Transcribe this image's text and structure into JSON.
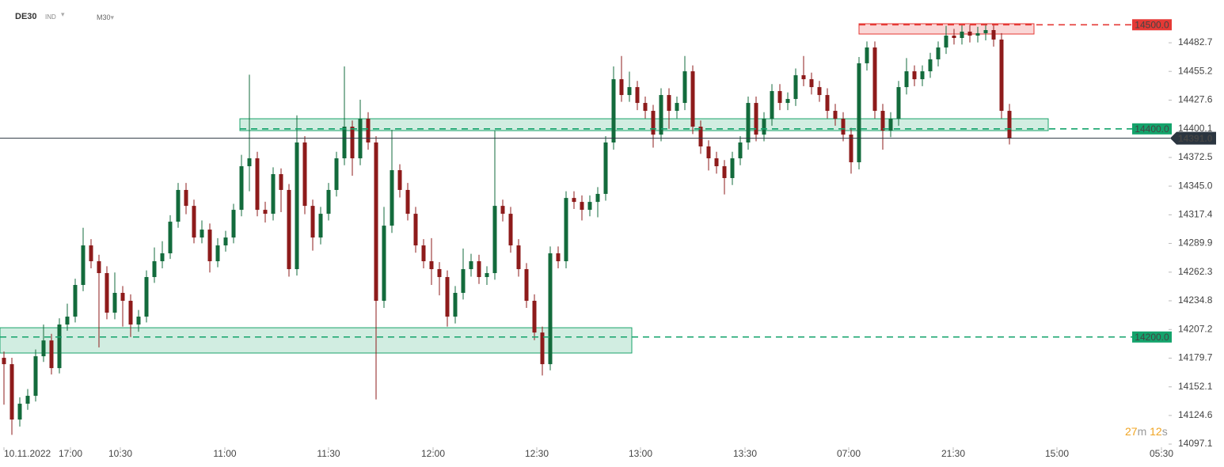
{
  "chart_data": {
    "type": "candlestick",
    "symbol": "DE30",
    "market": "IND",
    "timeframe": "M30",
    "timer": [
      "27",
      "m",
      "12",
      "s"
    ],
    "up_color": "#136b3c",
    "down_color": "#8e1b1b",
    "ylim": [
      14094.1,
      14523.8
    ],
    "yticks": [
      14097.1,
      14124.6,
      14152.1,
      14179.7,
      14207.2,
      14234.8,
      14262.3,
      14289.9,
      14317.4,
      {
        "value": 14345.0,
        "label": "14345.0"
      },
      14372.5,
      14400.1,
      14427.6,
      14455.2,
      14482.7
    ],
    "xticks": [
      {
        "value": 0,
        "label": "10.11.2022"
      },
      {
        "value": 8.4,
        "label": "17:00"
      },
      {
        "value": 14.7,
        "label": "10:30"
      },
      {
        "value": 27.9,
        "label": "11:00"
      },
      {
        "value": 41,
        "label": "11:30"
      },
      {
        "value": 54.2,
        "label": "12:00"
      },
      {
        "value": 67.3,
        "label": "12:30"
      },
      {
        "value": 80.4,
        "label": "13:00"
      },
      {
        "value": 93.6,
        "label": "13:30"
      },
      {
        "value": 106.7,
        "label": "07:00"
      },
      {
        "value": 119.9,
        "label": "21:30"
      },
      {
        "value": 133,
        "label": "15:00"
      },
      {
        "value": 146.2,
        "label": "05:30"
      }
    ],
    "open": [
      14180.0,
      14173.9,
      14120.7,
      14135.9,
      14143.5,
      14181.5,
      14196.7,
      14170.1,
      14212.0,
      14219.6,
      14250.0,
      14288.0,
      14272.8,
      14261.4,
      14223.4,
      14242.4,
      14234.8,
      14212.0,
      14219.6,
      14257.6,
      14272.8,
      14280.4,
      14310.8,
      14341.3,
      14326.0,
      14295.6,
      14303.2,
      14272.8,
      14288.0,
      14295.6,
      14322.2,
      14364.1,
      14371.7,
      14322.2,
      14318.4,
      14356.5,
      14341.3,
      14265.2,
      14386.9,
      14326.0,
      14295.6,
      14318.4,
      14341.3,
      14371.7,
      14402.1,
      14371.7,
      14409.7,
      14386.9,
      14234.8,
      14307.0,
      14360.3,
      14341.3,
      14318.4,
      14288.0,
      14272.8,
      14265.2,
      14257.6,
      14219.6,
      14242.4,
      14265.2,
      14272.8,
      14257.6,
      14261.4,
      14326.0,
      14318.4,
      14288.0,
      14265.2,
      14234.8,
      14204.3,
      14173.9,
      14280.4,
      14272.8,
      14333.6,
      14329.8,
      14322.2,
      14329.8,
      14337.5,
      14386.9,
      14447.7,
      14432.5,
      14440.1,
      14424.9,
      14417.3,
      14394.5,
      14432.5,
      14417.3,
      14424.9,
      14455.3,
      14402.1,
      14383.1,
      14371.7,
      14364.1,
      14352.7,
      14371.7,
      14386.9,
      14424.9,
      14394.5,
      14409.7,
      14436.3,
      14424.9,
      14428.7,
      14451.5,
      14447.7,
      14440.1,
      14432.5,
      14417.3,
      14409.7,
      14394.5,
      14367.9,
      14463.0,
      14478.2,
      14417.3,
      14398.3,
      14409.7,
      14440.1,
      14455.3,
      14447.7,
      14455.3,
      14466.8,
      14478.2,
      14489.6,
      14487.3,
      14493.4,
      14489.6,
      14491.9,
      14494.9,
      14485.8,
      14417.3
    ],
    "high": [
      14186,
      14180,
      14142,
      14150,
      14188,
      14212,
      14203,
      14218,
      14232,
      14256,
      14305,
      14294,
      14279,
      14268,
      14262,
      14249,
      14241,
      14226,
      14264,
      14286,
      14292,
      14317,
      14348,
      14348,
      14332,
      14312,
      14309,
      14295,
      14302,
      14328,
      14375,
      14452,
      14378,
      14330,
      14363,
      14362,
      14347,
      14413,
      14393,
      14332,
      14325,
      14348,
      14378,
      14460,
      14408,
      14428,
      14416,
      14393,
      14325,
      14399,
      14366,
      14348,
      14325,
      14294,
      14295,
      14272,
      14264,
      14249,
      14285,
      14280,
      14279,
      14268,
      14398,
      14332,
      14325,
      14294,
      14271,
      14241,
      14210,
      14287,
      14287,
      14340,
      14340,
      14336,
      14336,
      14344,
      14393,
      14460,
      14470,
      14455,
      14446,
      14431,
      14423,
      14439,
      14439,
      14431,
      14470,
      14461,
      14408,
      14389,
      14378,
      14370,
      14378,
      14393,
      14431,
      14431,
      14416,
      14443,
      14443,
      14435,
      14458,
      14470,
      14454,
      14446,
      14439,
      14424,
      14416,
      14401,
      14469,
      14484,
      14484,
      14424,
      14416,
      14446,
      14468,
      14461,
      14461,
      14473,
      14484,
      14499,
      14496,
      14500,
      14500,
      14498,
      14501,
      14501,
      14492,
      14424
    ],
    "low": [
      14135,
      14106,
      14114,
      14130,
      14138,
      14176,
      14164,
      14165,
      14206,
      14214,
      14244,
      14266,
      14190,
      14217,
      14217,
      14210,
      14200,
      14205,
      14214,
      14252,
      14266,
      14275,
      14305,
      14318,
      14290,
      14290,
      14262,
      14267,
      14282,
      14290,
      14316,
      14340,
      14316,
      14310,
      14312,
      14320,
      14258,
      14259,
      14318,
      14283,
      14289,
      14312,
      14335,
      14365,
      14355,
      14365,
      14380,
      14140,
      14228,
      14300,
      14334,
      14312,
      14281,
      14266,
      14250,
      14240,
      14210,
      14213,
      14236,
      14258,
      14251,
      14250,
      14255,
      14311,
      14281,
      14258,
      14228,
      14197,
      14163,
      14168,
      14266,
      14266,
      14323,
      14312,
      14316,
      14315,
      14331,
      14380,
      14426,
      14426,
      14418,
      14410,
      14382,
      14388,
      14400,
      14410,
      14418,
      14395,
      14376,
      14360,
      14357,
      14337,
      14346,
      14365,
      14380,
      14388,
      14388,
      14403,
      14418,
      14418,
      14422,
      14441,
      14433,
      14426,
      14410,
      14403,
      14388,
      14357,
      14361,
      14456,
      14410,
      14380,
      14392,
      14403,
      14433,
      14441,
      14441,
      14449,
      14460,
      14472,
      14481,
      14481,
      14483,
      14483,
      14485,
      14479,
      14410,
      14385
    ],
    "close": [
      14173.9,
      14120.7,
      14135.9,
      14143.5,
      14181.5,
      14196.7,
      14170.1,
      14212.0,
      14219.6,
      14250.0,
      14288.0,
      14272.8,
      14261.4,
      14223.4,
      14242.4,
      14234.8,
      14212.0,
      14219.6,
      14257.6,
      14272.8,
      14280.4,
      14310.8,
      14341.3,
      14326.0,
      14295.6,
      14303.2,
      14272.8,
      14288.0,
      14295.6,
      14322.2,
      14364.1,
      14371.7,
      14322.2,
      14318.4,
      14356.5,
      14341.3,
      14265.2,
      14386.9,
      14326.0,
      14295.6,
      14318.4,
      14341.3,
      14371.7,
      14402.1,
      14371.7,
      14409.7,
      14386.9,
      14234.8,
      14307.0,
      14360.3,
      14341.3,
      14318.4,
      14288.0,
      14272.8,
      14265.2,
      14257.6,
      14219.6,
      14242.4,
      14265.2,
      14272.8,
      14257.6,
      14261.4,
      14326.0,
      14318.4,
      14288.0,
      14265.2,
      14234.8,
      14204.3,
      14173.9,
      14280.4,
      14272.8,
      14333.6,
      14329.8,
      14322.2,
      14329.8,
      14337.5,
      14386.9,
      14447.7,
      14432.5,
      14440.1,
      14424.9,
      14417.3,
      14394.5,
      14432.5,
      14417.3,
      14424.9,
      14455.3,
      14402.1,
      14383.1,
      14371.7,
      14364.1,
      14352.7,
      14371.7,
      14386.9,
      14424.9,
      14394.5,
      14409.7,
      14436.3,
      14424.9,
      14428.7,
      14451.5,
      14447.7,
      14440.1,
      14432.5,
      14417.3,
      14409.7,
      14394.5,
      14367.9,
      14463.0,
      14478.2,
      14417.3,
      14398.3,
      14409.7,
      14440.1,
      14455.3,
      14447.7,
      14455.3,
      14466.8,
      14478.2,
      14489.6,
      14487.3,
      14493.4,
      14489.6,
      14491.9,
      14494.9,
      14485.8,
      14417.3,
      14391.0
    ],
    "zones": [
      {
        "low": 14184.6,
        "high": 14208.9,
        "start": -0.5,
        "end": 79.3,
        "color": "#1aa36a"
      },
      {
        "low": 14398.3,
        "high": 14409.7,
        "start": 29.8,
        "end": 131.9,
        "color": "#1aa36a"
      },
      {
        "low": 14491.1,
        "high": 14501.0,
        "start": 108,
        "end": 130.1,
        "color": "#e53935"
      }
    ],
    "levels": [
      {
        "value": 14500.0,
        "label": "14500.0",
        "color": "#e53935"
      },
      {
        "value": 14400.0,
        "label": "14400.0",
        "color": "#13a36b"
      },
      {
        "value": 14200.0,
        "label": "14200.0",
        "color": "#13a36b"
      }
    ],
    "last_price": {
      "value": 14391.0,
      "label": "14391.0",
      "color": "#2b3540"
    }
  }
}
